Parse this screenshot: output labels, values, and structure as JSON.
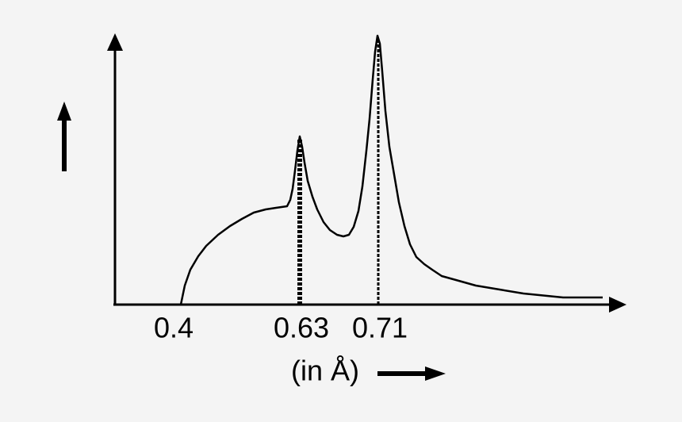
{
  "x_axis": {
    "tick_labels": [
      "0.4",
      "0.63",
      "0.71"
    ],
    "unit_label": "(in Å)"
  }
}
